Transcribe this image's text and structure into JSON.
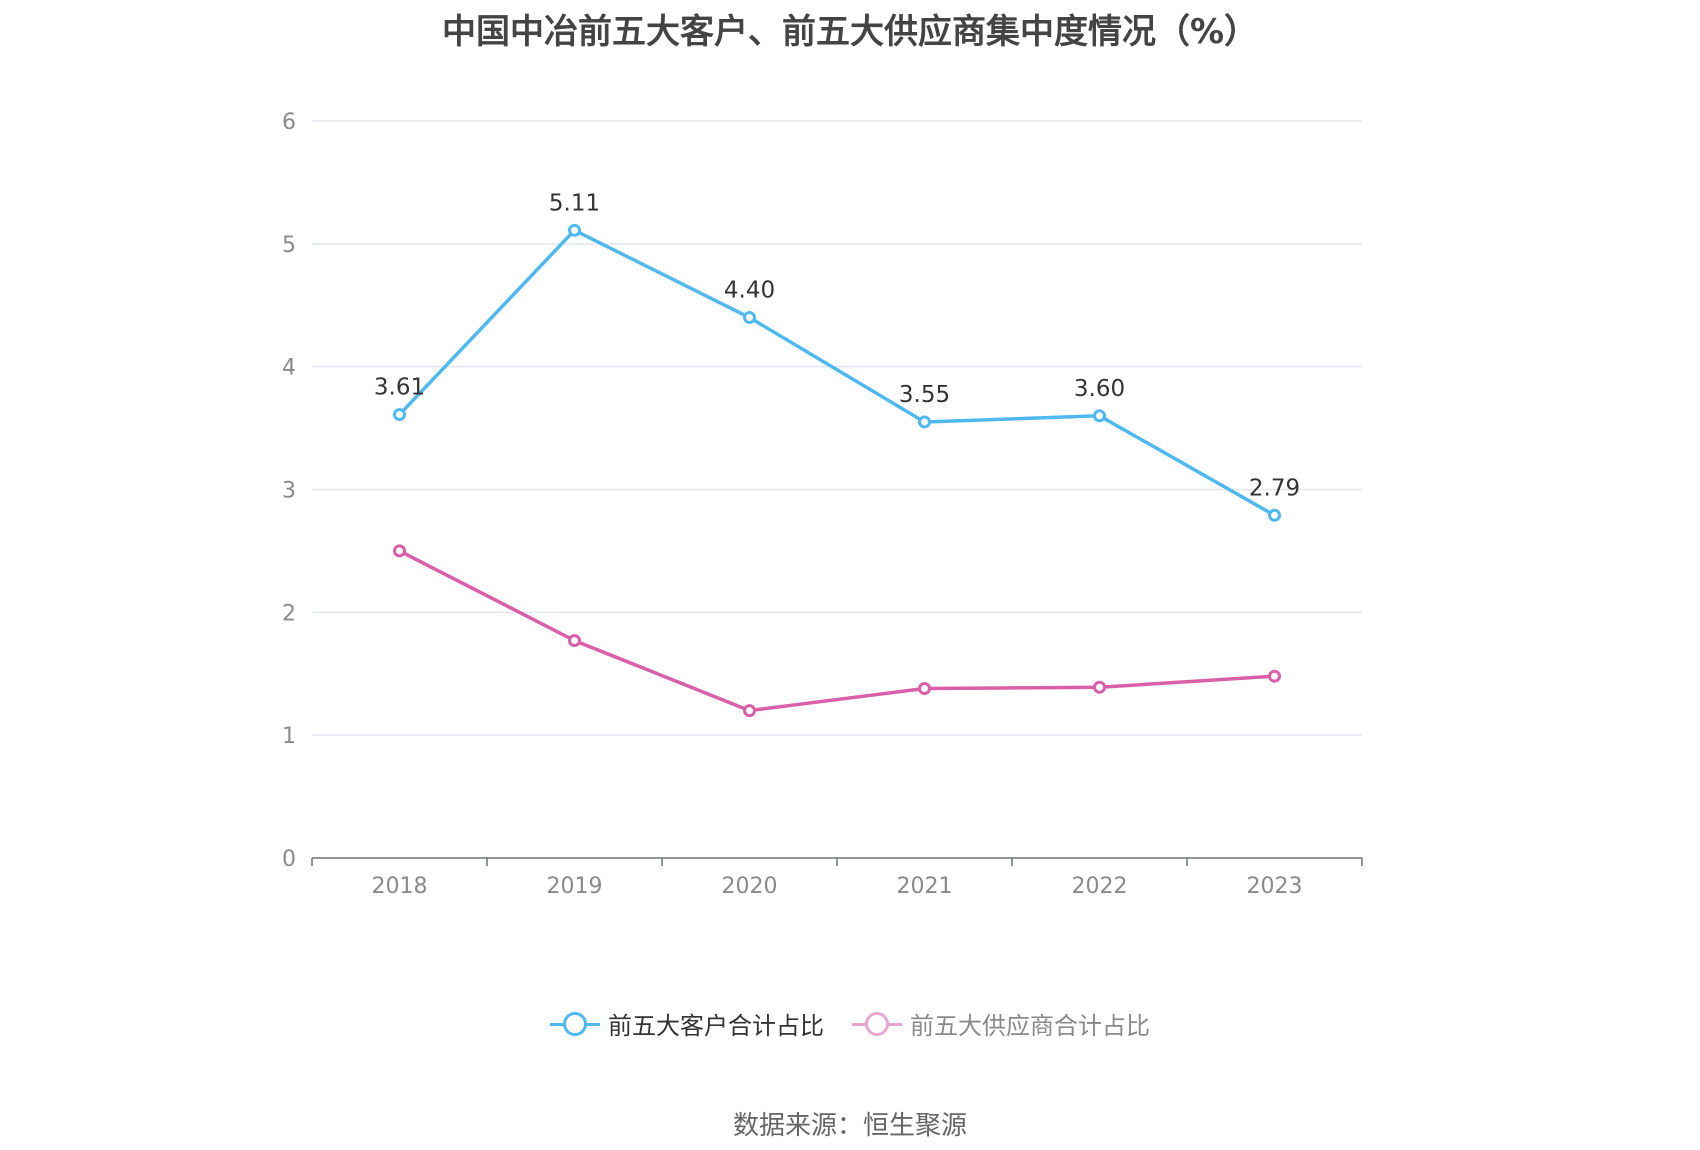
{
  "chart_data": {
    "type": "line",
    "title": "中国中冶前五大客户、前五大供应商集中度情况（%）",
    "categories": [
      "2018",
      "2019",
      "2020",
      "2021",
      "2022",
      "2023"
    ],
    "ylim": [
      0,
      6
    ],
    "yticks": [
      "0",
      "1",
      "2",
      "3",
      "4",
      "5",
      "6"
    ],
    "grid": true,
    "legend_position": "bottom",
    "series": [
      {
        "name": "前五大客户合计占比",
        "color": "#4fb9ef",
        "values": [
          3.61,
          5.11,
          4.4,
          3.55,
          3.6,
          2.79
        ],
        "labels": [
          "3.61",
          "5.11",
          "4.40",
          "3.55",
          "3.60",
          "2.79"
        ]
      },
      {
        "name": "前五大供应商合计占比",
        "color": "#d95fa8",
        "legend_color": "#e9a6d1",
        "values": [
          2.5,
          1.77,
          1.2,
          1.38,
          1.39,
          1.48
        ],
        "labels": []
      }
    ],
    "source": "数据来源：恒生聚源"
  }
}
